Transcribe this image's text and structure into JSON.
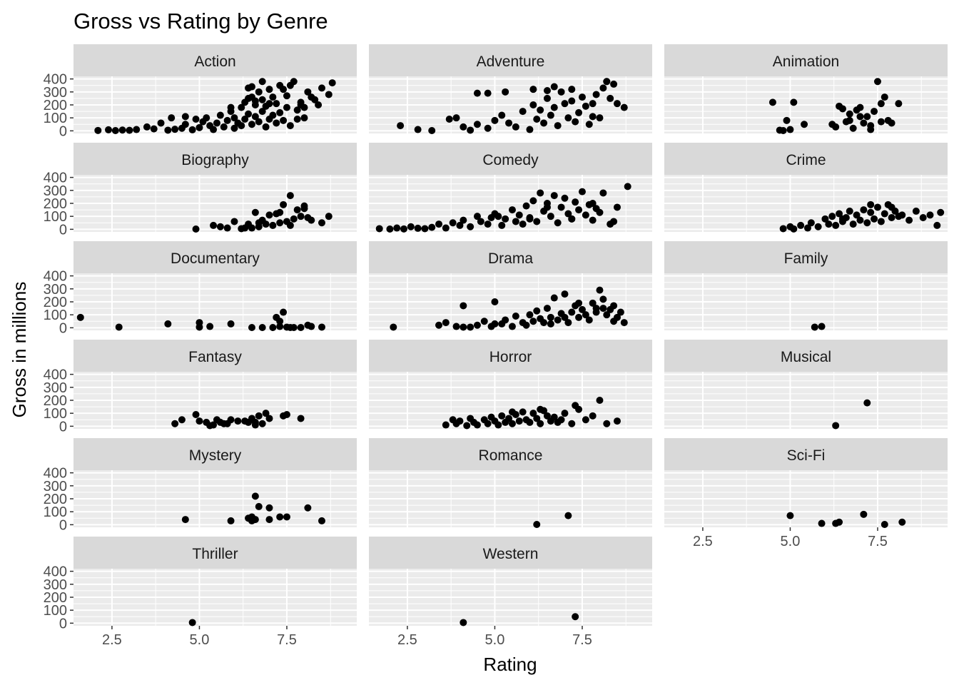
{
  "chart_data": {
    "type": "scatter",
    "title": "Gross vs Rating by Genre",
    "xlabel": "Rating",
    "ylabel": "Gross in millions",
    "xlim": [
      1.4,
      9.5
    ],
    "ylim": [
      -20,
      420
    ],
    "x_ticks": [
      2.5,
      5.0,
      7.5
    ],
    "x_tick_labels": [
      "2.5",
      "5.0",
      "7.5"
    ],
    "y_ticks": [
      0,
      100,
      200,
      300,
      400
    ],
    "y_tick_labels": [
      "0",
      "100",
      "200",
      "300",
      "400"
    ],
    "facet_layout": {
      "columns": 3,
      "rows": 6
    },
    "grid": true,
    "point_color": "#000000",
    "panel_background": "#ebebeb",
    "strip_background": "#d9d9d9",
    "panels": [
      {
        "name": "Action",
        "x": [
          2.1,
          2.4,
          2.6,
          2.8,
          3.0,
          3.2,
          3.5,
          3.7,
          3.9,
          4.1,
          4.2,
          4.3,
          4.5,
          4.6,
          4.8,
          4.9,
          5.0,
          5.1,
          5.3,
          5.4,
          5.5,
          5.6,
          5.7,
          5.8,
          5.9,
          6.0,
          6.0,
          6.1,
          6.2,
          6.2,
          6.3,
          6.3,
          6.4,
          6.4,
          6.5,
          6.5,
          6.6,
          6.6,
          6.7,
          6.7,
          6.8,
          6.8,
          6.9,
          6.9,
          7.0,
          7.0,
          7.1,
          7.1,
          7.2,
          7.2,
          7.3,
          7.3,
          7.4,
          7.5,
          7.5,
          7.6,
          7.7,
          7.8,
          7.9,
          8.0,
          8.1,
          8.2,
          8.4,
          8.5,
          8.7,
          8.8,
          6.4,
          6.6,
          7.0,
          7.6,
          7.9,
          8.3,
          6.5,
          5.9,
          4.6,
          5.2,
          7.4,
          8.0,
          6.8,
          7.8
        ],
        "y": [
          3,
          8,
          2,
          6,
          4,
          10,
          30,
          15,
          60,
          5,
          100,
          12,
          20,
          50,
          8,
          90,
          25,
          70,
          40,
          10,
          60,
          120,
          30,
          80,
          150,
          20,
          100,
          60,
          180,
          40,
          220,
          90,
          250,
          130,
          340,
          50,
          200,
          110,
          300,
          70,
          150,
          240,
          30,
          190,
          320,
          90,
          120,
          260,
          60,
          210,
          350,
          140,
          80,
          270,
          180,
          40,
          380,
          160,
          220,
          100,
          300,
          260,
          200,
          330,
          280,
          370,
          330,
          230,
          210,
          350,
          200,
          240,
          260,
          180,
          110,
          100,
          320,
          180,
          380,
          90
        ]
      },
      {
        "name": "Adventure",
        "x": [
          2.3,
          2.8,
          3.2,
          3.7,
          3.9,
          4.1,
          4.3,
          4.5,
          4.8,
          5.0,
          5.2,
          5.4,
          5.6,
          5.8,
          6.0,
          6.1,
          6.2,
          6.3,
          6.4,
          6.5,
          6.6,
          6.7,
          6.8,
          6.9,
          7.0,
          7.1,
          7.2,
          7.3,
          7.4,
          7.5,
          7.6,
          7.7,
          7.8,
          7.9,
          8.0,
          8.1,
          8.2,
          8.3,
          8.5,
          8.7,
          4.5,
          4.8,
          5.3,
          6.1,
          6.5,
          6.7,
          7.2,
          7.8,
          8.2,
          8.4
        ],
        "y": [
          40,
          10,
          2,
          90,
          100,
          30,
          5,
          50,
          20,
          80,
          120,
          60,
          30,
          150,
          10,
          200,
          90,
          160,
          60,
          250,
          120,
          180,
          40,
          300,
          210,
          100,
          230,
          70,
          140,
          260,
          190,
          50,
          210,
          280,
          100,
          330,
          380,
          250,
          210,
          180,
          290,
          290,
          300,
          320,
          310,
          340,
          320,
          110,
          380,
          360
        ]
      },
      {
        "name": "Animation",
        "x": [
          4.5,
          4.7,
          4.8,
          4.9,
          5.0,
          5.1,
          5.4,
          6.2,
          6.3,
          6.4,
          6.5,
          6.6,
          6.7,
          6.8,
          6.9,
          7.0,
          7.1,
          7.2,
          7.3,
          7.4,
          7.5,
          7.6,
          7.7,
          7.8,
          7.9,
          8.1,
          6.7,
          7.0,
          7.3,
          7.6
        ],
        "y": [
          220,
          5,
          2,
          80,
          10,
          220,
          50,
          50,
          30,
          190,
          170,
          70,
          130,
          20,
          160,
          110,
          60,
          110,
          10,
          150,
          380,
          70,
          260,
          80,
          60,
          210,
          80,
          180,
          40,
          210
        ]
      },
      {
        "name": "Biography",
        "x": [
          4.9,
          5.4,
          5.6,
          5.8,
          6.0,
          6.2,
          6.4,
          6.5,
          6.6,
          6.7,
          6.8,
          6.9,
          7.0,
          7.1,
          7.2,
          7.3,
          7.4,
          7.5,
          7.6,
          7.7,
          7.8,
          7.9,
          8.0,
          8.1,
          8.2,
          8.5,
          8.7,
          6.3,
          6.7,
          7.3,
          7.6,
          8.0
        ],
        "y": [
          2,
          30,
          20,
          10,
          60,
          5,
          40,
          10,
          130,
          20,
          70,
          40,
          110,
          30,
          120,
          50,
          190,
          60,
          260,
          80,
          150,
          100,
          180,
          90,
          70,
          50,
          100,
          10,
          50,
          130,
          30,
          160
        ]
      },
      {
        "name": "Comedy",
        "x": [
          1.7,
          2.0,
          2.2,
          2.4,
          2.6,
          2.8,
          3.0,
          3.2,
          3.4,
          3.6,
          3.8,
          4.0,
          4.1,
          4.3,
          4.5,
          4.6,
          4.8,
          4.9,
          5.0,
          5.2,
          5.3,
          5.5,
          5.6,
          5.7,
          5.8,
          5.9,
          6.0,
          6.1,
          6.2,
          6.3,
          6.4,
          6.5,
          6.6,
          6.7,
          6.8,
          6.9,
          7.0,
          7.1,
          7.2,
          7.3,
          7.4,
          7.5,
          7.6,
          7.7,
          7.8,
          7.9,
          8.0,
          8.1,
          8.3,
          8.5,
          8.8,
          5.1,
          6.0,
          6.5,
          7.2,
          7.8,
          8.4
        ],
        "y": [
          5,
          2,
          10,
          3,
          20,
          8,
          5,
          15,
          40,
          10,
          50,
          30,
          70,
          20,
          100,
          60,
          40,
          90,
          120,
          30,
          80,
          150,
          60,
          110,
          40,
          180,
          90,
          220,
          60,
          280,
          140,
          200,
          100,
          260,
          50,
          170,
          240,
          120,
          80,
          210,
          150,
          290,
          110,
          190,
          70,
          160,
          130,
          280,
          40,
          170,
          330,
          100,
          80,
          170,
          80,
          200,
          60
        ]
      },
      {
        "name": "Crime",
        "x": [
          4.8,
          5.0,
          5.1,
          5.3,
          5.5,
          5.6,
          5.8,
          6.0,
          6.1,
          6.2,
          6.3,
          6.4,
          6.5,
          6.6,
          6.7,
          6.8,
          6.9,
          7.0,
          7.1,
          7.2,
          7.3,
          7.4,
          7.5,
          7.6,
          7.7,
          7.8,
          7.9,
          8.0,
          8.1,
          8.2,
          8.4,
          8.6,
          8.8,
          9.0,
          9.2,
          9.3,
          7.3,
          7.9,
          6.5
        ],
        "y": [
          5,
          20,
          3,
          30,
          10,
          50,
          20,
          80,
          40,
          100,
          30,
          120,
          60,
          90,
          140,
          40,
          110,
          70,
          150,
          50,
          130,
          80,
          170,
          60,
          120,
          190,
          90,
          140,
          100,
          110,
          70,
          140,
          90,
          110,
          30,
          130,
          190,
          170,
          80
        ]
      },
      {
        "name": "Documentary",
        "x": [
          1.6,
          2.7,
          4.1,
          5.0,
          5.0,
          5.3,
          5.9,
          6.5,
          6.8,
          7.1,
          7.2,
          7.3,
          7.4,
          7.5,
          7.6,
          7.7,
          7.9,
          8.1,
          8.2,
          8.5,
          7.3
        ],
        "y": [
          80,
          5,
          30,
          40,
          5,
          10,
          30,
          2,
          2,
          2,
          80,
          10,
          120,
          5,
          2,
          2,
          2,
          20,
          10,
          5,
          50
        ]
      },
      {
        "name": "Drama",
        "x": [
          2.1,
          3.4,
          3.6,
          3.9,
          4.1,
          4.3,
          4.5,
          4.7,
          4.9,
          5.0,
          5.2,
          5.3,
          5.5,
          5.6,
          5.8,
          5.9,
          6.0,
          6.1,
          6.2,
          6.3,
          6.4,
          6.5,
          6.6,
          6.7,
          6.8,
          6.9,
          7.0,
          7.1,
          7.2,
          7.3,
          7.4,
          7.5,
          7.6,
          7.7,
          7.8,
          7.9,
          8.0,
          8.1,
          8.2,
          8.3,
          8.4,
          8.5,
          8.6,
          8.7,
          4.1,
          5.0,
          6.6,
          7.0,
          8.1,
          8.4,
          7.4,
          7.9
        ],
        "y": [
          5,
          20,
          40,
          10,
          170,
          5,
          20,
          50,
          10,
          200,
          30,
          60,
          10,
          90,
          40,
          20,
          100,
          50,
          130,
          70,
          40,
          150,
          80,
          230,
          60,
          110,
          260,
          40,
          120,
          170,
          80,
          140,
          100,
          60,
          190,
          120,
          290,
          150,
          100,
          140,
          170,
          80,
          120,
          40,
          5,
          30,
          30,
          80,
          220,
          50,
          190,
          150
        ]
      },
      {
        "name": "Family",
        "x": [
          5.7,
          5.9
        ],
        "y": [
          5,
          10
        ]
      },
      {
        "name": "Fantasy",
        "x": [
          4.3,
          4.5,
          4.9,
          5.0,
          5.2,
          5.4,
          5.5,
          5.6,
          5.8,
          5.9,
          6.1,
          6.4,
          6.5,
          6.6,
          6.7,
          6.8,
          6.9,
          7.0,
          7.4,
          7.5,
          7.9,
          5.3,
          5.7,
          6.3,
          6.6
        ],
        "y": [
          20,
          50,
          90,
          40,
          30,
          10,
          50,
          30,
          20,
          50,
          40,
          30,
          60,
          10,
          80,
          20,
          100,
          60,
          80,
          90,
          60,
          5,
          20,
          40,
          30
        ]
      },
      {
        "name": "Horror",
        "x": [
          3.6,
          3.8,
          3.9,
          4.0,
          4.2,
          4.3,
          4.4,
          4.5,
          4.7,
          4.8,
          4.9,
          5.0,
          5.1,
          5.2,
          5.3,
          5.4,
          5.5,
          5.6,
          5.7,
          5.8,
          5.9,
          6.0,
          6.1,
          6.2,
          6.3,
          6.4,
          6.5,
          6.6,
          6.7,
          6.8,
          6.9,
          7.0,
          7.2,
          7.4,
          7.6,
          7.8,
          8.0,
          8.2,
          8.5,
          6.3,
          5.5,
          7.3
        ],
        "y": [
          10,
          50,
          20,
          40,
          5,
          60,
          30,
          10,
          50,
          20,
          70,
          40,
          10,
          80,
          30,
          60,
          20,
          90,
          40,
          110,
          50,
          30,
          100,
          60,
          20,
          120,
          80,
          40,
          70,
          30,
          50,
          100,
          20,
          130,
          50,
          80,
          200,
          20,
          40,
          130,
          110,
          160
        ]
      },
      {
        "name": "Musical",
        "x": [
          6.3,
          7.2
        ],
        "y": [
          5,
          180
        ]
      },
      {
        "name": "Mystery",
        "x": [
          4.6,
          5.9,
          6.4,
          6.5,
          6.5,
          6.6,
          6.6,
          6.7,
          7.0,
          7.0,
          7.3,
          7.5,
          8.1,
          8.5
        ],
        "y": [
          40,
          30,
          50,
          60,
          30,
          220,
          40,
          140,
          130,
          40,
          60,
          60,
          130,
          30
        ]
      },
      {
        "name": "Romance",
        "x": [
          6.2,
          7.1
        ],
        "y": [
          2,
          70
        ]
      },
      {
        "name": "Sci-Fi",
        "x": [
          5.0,
          5.9,
          6.3,
          6.4,
          7.1,
          7.7,
          8.2
        ],
        "y": [
          70,
          10,
          10,
          20,
          80,
          2,
          20
        ]
      },
      {
        "name": "Thriller",
        "x": [
          4.8
        ],
        "y": [
          5
        ]
      },
      {
        "name": "Western",
        "x": [
          4.1,
          7.3
        ],
        "y": [
          5,
          50
        ]
      }
    ]
  }
}
